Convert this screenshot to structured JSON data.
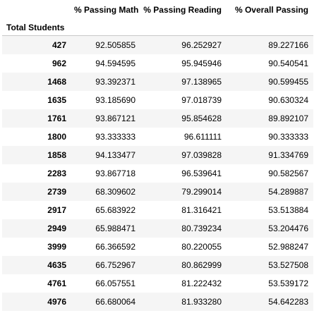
{
  "table": {
    "columns": [
      "% Passing Math",
      "% Passing Reading",
      "% Overall Passing"
    ],
    "index_name": "Total Students",
    "rows": [
      {
        "index": "427",
        "values": [
          "92.505855",
          "96.252927",
          "89.227166"
        ]
      },
      {
        "index": "962",
        "values": [
          "94.594595",
          "95.945946",
          "90.540541"
        ]
      },
      {
        "index": "1468",
        "values": [
          "93.392371",
          "97.138965",
          "90.599455"
        ]
      },
      {
        "index": "1635",
        "values": [
          "93.185690",
          "97.018739",
          "90.630324"
        ]
      },
      {
        "index": "1761",
        "values": [
          "93.867121",
          "95.854628",
          "89.892107"
        ]
      },
      {
        "index": "1800",
        "values": [
          "93.333333",
          "96.611111",
          "90.333333"
        ]
      },
      {
        "index": "1858",
        "values": [
          "94.133477",
          "97.039828",
          "91.334769"
        ]
      },
      {
        "index": "2283",
        "values": [
          "93.867718",
          "96.539641",
          "90.582567"
        ]
      },
      {
        "index": "2739",
        "values": [
          "68.309602",
          "79.299014",
          "54.289887"
        ]
      },
      {
        "index": "2917",
        "values": [
          "65.683922",
          "81.316421",
          "53.513884"
        ]
      },
      {
        "index": "2949",
        "values": [
          "65.988471",
          "80.739234",
          "53.204476"
        ]
      },
      {
        "index": "3999",
        "values": [
          "66.366592",
          "80.220055",
          "52.988247"
        ]
      },
      {
        "index": "4635",
        "values": [
          "66.752967",
          "80.862999",
          "53.527508"
        ]
      },
      {
        "index": "4761",
        "values": [
          "66.057551",
          "81.222432",
          "53.539172"
        ]
      },
      {
        "index": "4976",
        "values": [
          "66.680064",
          "81.933280",
          "54.642283"
        ]
      }
    ]
  }
}
